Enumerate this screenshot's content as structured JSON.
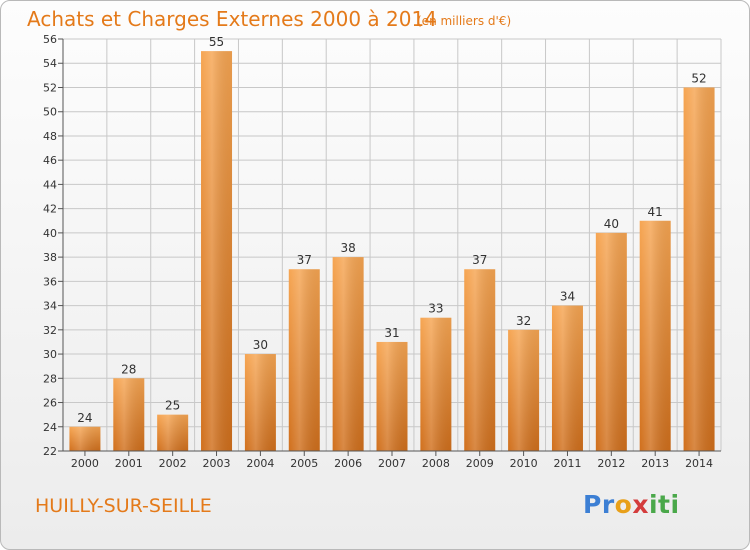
{
  "header": {
    "title": "Achats et Charges Externes 2000 à 2014",
    "unit": "(en milliers d'€)"
  },
  "footer": {
    "commune": "HUILLY-SUR-SEILLE",
    "logo_text": "Proxiti"
  },
  "colors": {
    "title": "#e47a1a",
    "bar_light": "#f6a552",
    "bar_dark": "#d06f1c",
    "grid": "#c8c8c8",
    "axis": "#555555"
  },
  "chart_data": {
    "type": "bar",
    "title": "Achats et Charges Externes 2000 à 2014",
    "subtitle": "(en milliers d'€)",
    "xlabel": "",
    "ylabel": "",
    "categories": [
      "2000",
      "2001",
      "2002",
      "2003",
      "2004",
      "2005",
      "2006",
      "2007",
      "2008",
      "2009",
      "2010",
      "2011",
      "2012",
      "2013",
      "2014"
    ],
    "values": [
      24,
      28,
      25,
      55,
      30,
      37,
      38,
      31,
      33,
      37,
      32,
      34,
      40,
      41,
      52
    ],
    "ylim": [
      22,
      56
    ],
    "ytick_step": 2,
    "grid": true,
    "data_labels": true
  }
}
